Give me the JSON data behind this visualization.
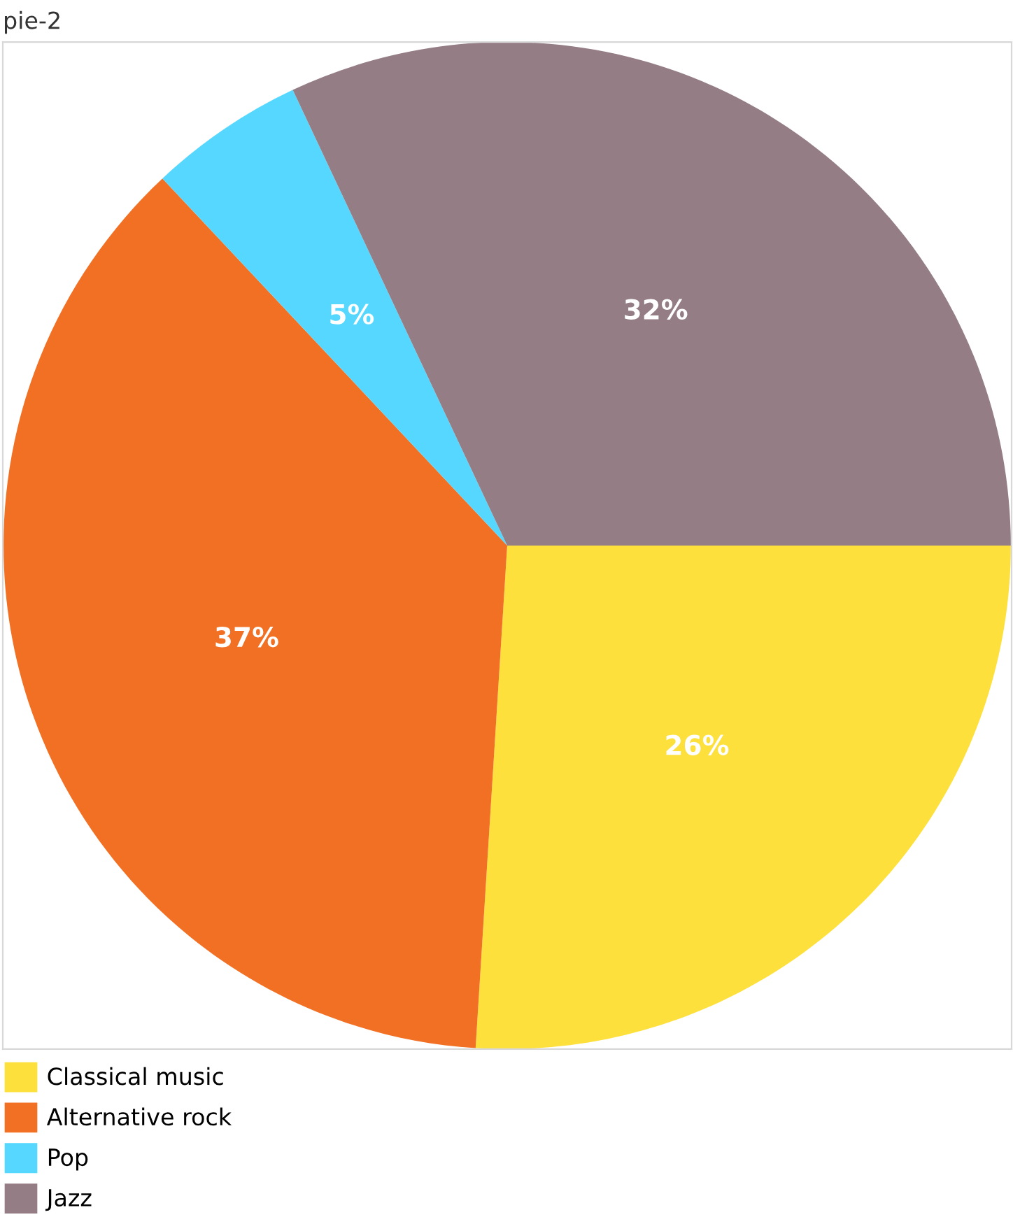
{
  "chart_data": {
    "type": "pie",
    "title": "pie-2",
    "categories": [
      "Classical music",
      "Alternative rock",
      "Pop",
      "Jazz"
    ],
    "values": [
      26,
      37,
      5,
      32
    ],
    "colors": [
      "#fde03b",
      "#f27023",
      "#55d7ff",
      "#947d85"
    ],
    "value_labels": [
      "26%",
      "37%",
      "5%",
      "32%"
    ],
    "legend": "bottom"
  }
}
